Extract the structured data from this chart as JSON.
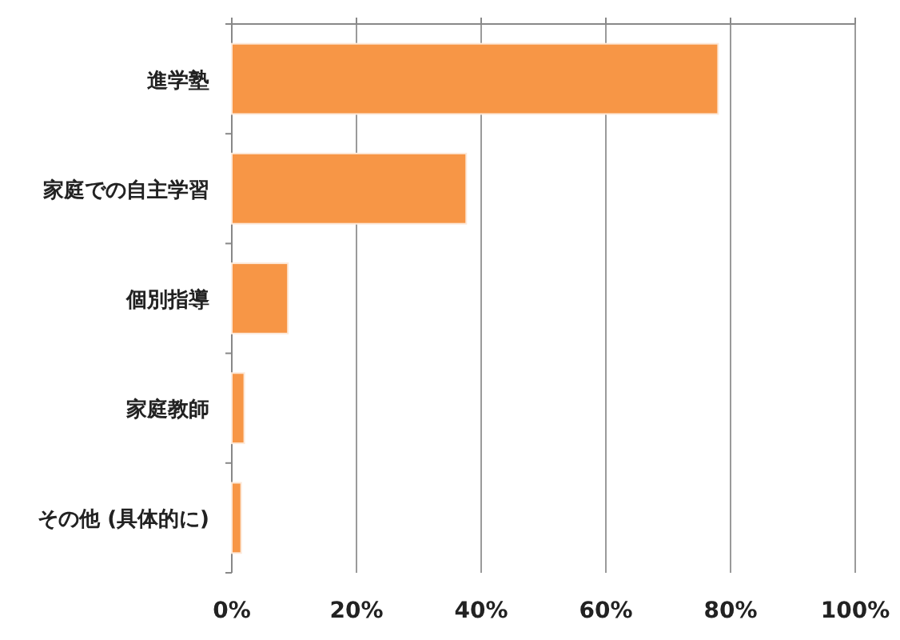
{
  "chart_data": {
    "type": "bar",
    "orientation": "horizontal",
    "categories": [
      "進学塾",
      "家庭での自主学習",
      "個別指導",
      "家庭教師",
      "その他 (具体的に)"
    ],
    "values": [
      78,
      37.6,
      9,
      2,
      1.5
    ],
    "color": "#f79646",
    "xlim": [
      0,
      100
    ],
    "xticks": [
      {
        "value": 0,
        "label": "0%"
      },
      {
        "value": 20,
        "label": "20%"
      },
      {
        "value": 40,
        "label": "40%"
      },
      {
        "value": 60,
        "label": "60%"
      },
      {
        "value": 80,
        "label": "80%"
      },
      {
        "value": 100,
        "label": "100%"
      }
    ],
    "grid": "x"
  }
}
